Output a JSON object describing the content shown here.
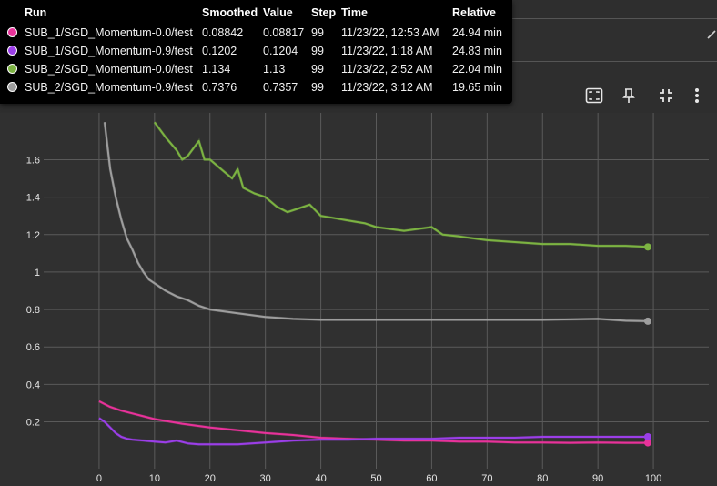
{
  "toolbar": {
    "icons": [
      "fullscreen-icon",
      "pin-icon",
      "fit-domain-icon",
      "more-vert-icon"
    ]
  },
  "tooltip": {
    "headers": {
      "run": "Run",
      "smoothed": "Smoothed",
      "value": "Value",
      "step": "Step",
      "time": "Time",
      "relative": "Relative"
    },
    "rows": [
      {
        "run": "SUB_1/SGD_Momentum-0.0/test",
        "smoothed": "0.08842",
        "value": "0.08817",
        "step": "99",
        "time": "11/23/22, 12:53 AM",
        "relative": "24.94 min",
        "color": "#e8329a"
      },
      {
        "run": "SUB_1/SGD_Momentum-0.9/test",
        "smoothed": "0.1202",
        "value": "0.1204",
        "step": "99",
        "time": "11/23/22, 1:18 AM",
        "relative": "24.83 min",
        "color": "#9b3ee8"
      },
      {
        "run": "SUB_2/SGD_Momentum-0.0/test",
        "smoothed": "1.134",
        "value": "1.13",
        "step": "99",
        "time": "11/23/22, 2:52 AM",
        "relative": "22.04 min",
        "color": "#7cb342"
      },
      {
        "run": "SUB_2/SGD_Momentum-0.9/test",
        "smoothed": "0.7376",
        "value": "0.7357",
        "step": "99",
        "time": "11/23/22, 3:12 AM",
        "relative": "19.65 min",
        "color": "#9e9e9e"
      }
    ]
  },
  "chart_data": {
    "type": "line",
    "xlim": [
      -10,
      110
    ],
    "ylim": [
      -0.05,
      1.85
    ],
    "x_ticks": [
      0,
      10,
      20,
      30,
      40,
      50,
      60,
      70,
      80,
      90,
      100
    ],
    "y_ticks": [
      "0.2",
      "0.4",
      "0.6",
      "0.8",
      "1",
      "1.2",
      "1.4",
      "1.6"
    ],
    "y_tick_values": [
      0.2,
      0.4,
      0.6,
      0.8,
      1.0,
      1.2,
      1.4,
      1.6
    ],
    "grid": true,
    "series": [
      {
        "name": "SUB_1/SGD_Momentum-0.0/test",
        "color": "#e8329a",
        "x": [
          0,
          2,
          4,
          6,
          8,
          10,
          15,
          20,
          25,
          30,
          35,
          40,
          45,
          50,
          55,
          60,
          65,
          70,
          75,
          80,
          85,
          90,
          95,
          99
        ],
        "y": [
          0.31,
          0.28,
          0.26,
          0.245,
          0.23,
          0.215,
          0.19,
          0.17,
          0.155,
          0.14,
          0.13,
          0.115,
          0.11,
          0.105,
          0.1,
          0.1,
          0.095,
          0.095,
          0.09,
          0.09,
          0.088,
          0.09,
          0.088,
          0.088
        ]
      },
      {
        "name": "SUB_1/SGD_Momentum-0.9/test",
        "color": "#9b3ee8",
        "x": [
          0,
          1,
          2,
          3,
          4,
          5,
          6,
          8,
          10,
          12,
          14,
          16,
          18,
          20,
          25,
          30,
          35,
          40,
          45,
          50,
          55,
          60,
          65,
          70,
          75,
          80,
          85,
          90,
          95,
          99
        ],
        "y": [
          0.22,
          0.2,
          0.17,
          0.14,
          0.12,
          0.11,
          0.105,
          0.1,
          0.095,
          0.09,
          0.1,
          0.085,
          0.08,
          0.08,
          0.08,
          0.09,
          0.1,
          0.105,
          0.105,
          0.11,
          0.11,
          0.11,
          0.115,
          0.115,
          0.115,
          0.12,
          0.12,
          0.12,
          0.12,
          0.12
        ]
      },
      {
        "name": "SUB_2/SGD_Momentum-0.0/test",
        "color": "#7cb342",
        "x": [
          10,
          12,
          14,
          15,
          16,
          18,
          19,
          20,
          22,
          24,
          25,
          26,
          28,
          30,
          32,
          34,
          36,
          38,
          40,
          42,
          44,
          46,
          48,
          50,
          55,
          60,
          62,
          65,
          70,
          75,
          80,
          85,
          90,
          95,
          99
        ],
        "y": [
          1.8,
          1.72,
          1.65,
          1.6,
          1.62,
          1.7,
          1.6,
          1.6,
          1.55,
          1.5,
          1.55,
          1.45,
          1.42,
          1.4,
          1.35,
          1.32,
          1.34,
          1.36,
          1.3,
          1.29,
          1.28,
          1.27,
          1.26,
          1.24,
          1.22,
          1.24,
          1.2,
          1.19,
          1.17,
          1.16,
          1.15,
          1.15,
          1.14,
          1.14,
          1.134
        ]
      },
      {
        "name": "SUB_2/SGD_Momentum-0.9/test",
        "color": "#9e9e9e",
        "x": [
          1,
          2,
          3,
          4,
          5,
          6,
          7,
          8,
          9,
          10,
          12,
          14,
          16,
          18,
          20,
          25,
          30,
          35,
          40,
          50,
          60,
          70,
          80,
          90,
          95,
          99
        ],
        "y": [
          1.8,
          1.55,
          1.4,
          1.28,
          1.18,
          1.12,
          1.05,
          1.0,
          0.96,
          0.94,
          0.9,
          0.87,
          0.85,
          0.82,
          0.8,
          0.78,
          0.76,
          0.75,
          0.745,
          0.745,
          0.745,
          0.745,
          0.745,
          0.75,
          0.74,
          0.7376
        ]
      }
    ]
  }
}
